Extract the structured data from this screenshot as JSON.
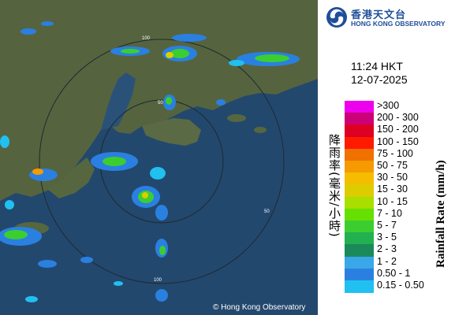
{
  "map": {
    "copyright": "© Hong Kong Observatory",
    "range_ring_labels": [
      "50",
      "100",
      "50",
      "100"
    ]
  },
  "header": {
    "logo_zh": "香港天文台",
    "logo_en": "HONG KONG OBSERVATORY",
    "time": "11:24 HKT",
    "date": "12-07-2025"
  },
  "legend": {
    "title_zh": "降雨率(毫米/小時)",
    "title_en": "Rainfall Rate (mm/h)",
    "items": [
      {
        "label": ">300",
        "color": "#ee00ee"
      },
      {
        "label": "200 - 300",
        "color": "#cc0077"
      },
      {
        "label": "150 - 200",
        "color": "#dd0022"
      },
      {
        "label": "100 - 150",
        "color": "#ff1a00"
      },
      {
        "label": "75 - 100",
        "color": "#f07000"
      },
      {
        "label": "50 - 75",
        "color": "#f59a00"
      },
      {
        "label": "30 - 50",
        "color": "#f5bd00"
      },
      {
        "label": "15 - 30",
        "color": "#dccc00"
      },
      {
        "label": "10 - 15",
        "color": "#a8df00"
      },
      {
        "label": "7 - 10",
        "color": "#66e000"
      },
      {
        "label": "5 - 7",
        "color": "#3cce30"
      },
      {
        "label": "3 - 5",
        "color": "#22b050"
      },
      {
        "label": "2 - 3",
        "color": "#1a8a5a"
      },
      {
        "label": "1 - 2",
        "color": "#3aa8e8"
      },
      {
        "label": "0.50 - 1",
        "color": "#2a80e0"
      },
      {
        "label": "0.15 - 0.50",
        "color": "#20c0f0"
      }
    ]
  },
  "colors": {
    "land": "#53623f",
    "water": "#23486e",
    "ring": "#20303a",
    "logo_blue": "#1f4e9a"
  }
}
